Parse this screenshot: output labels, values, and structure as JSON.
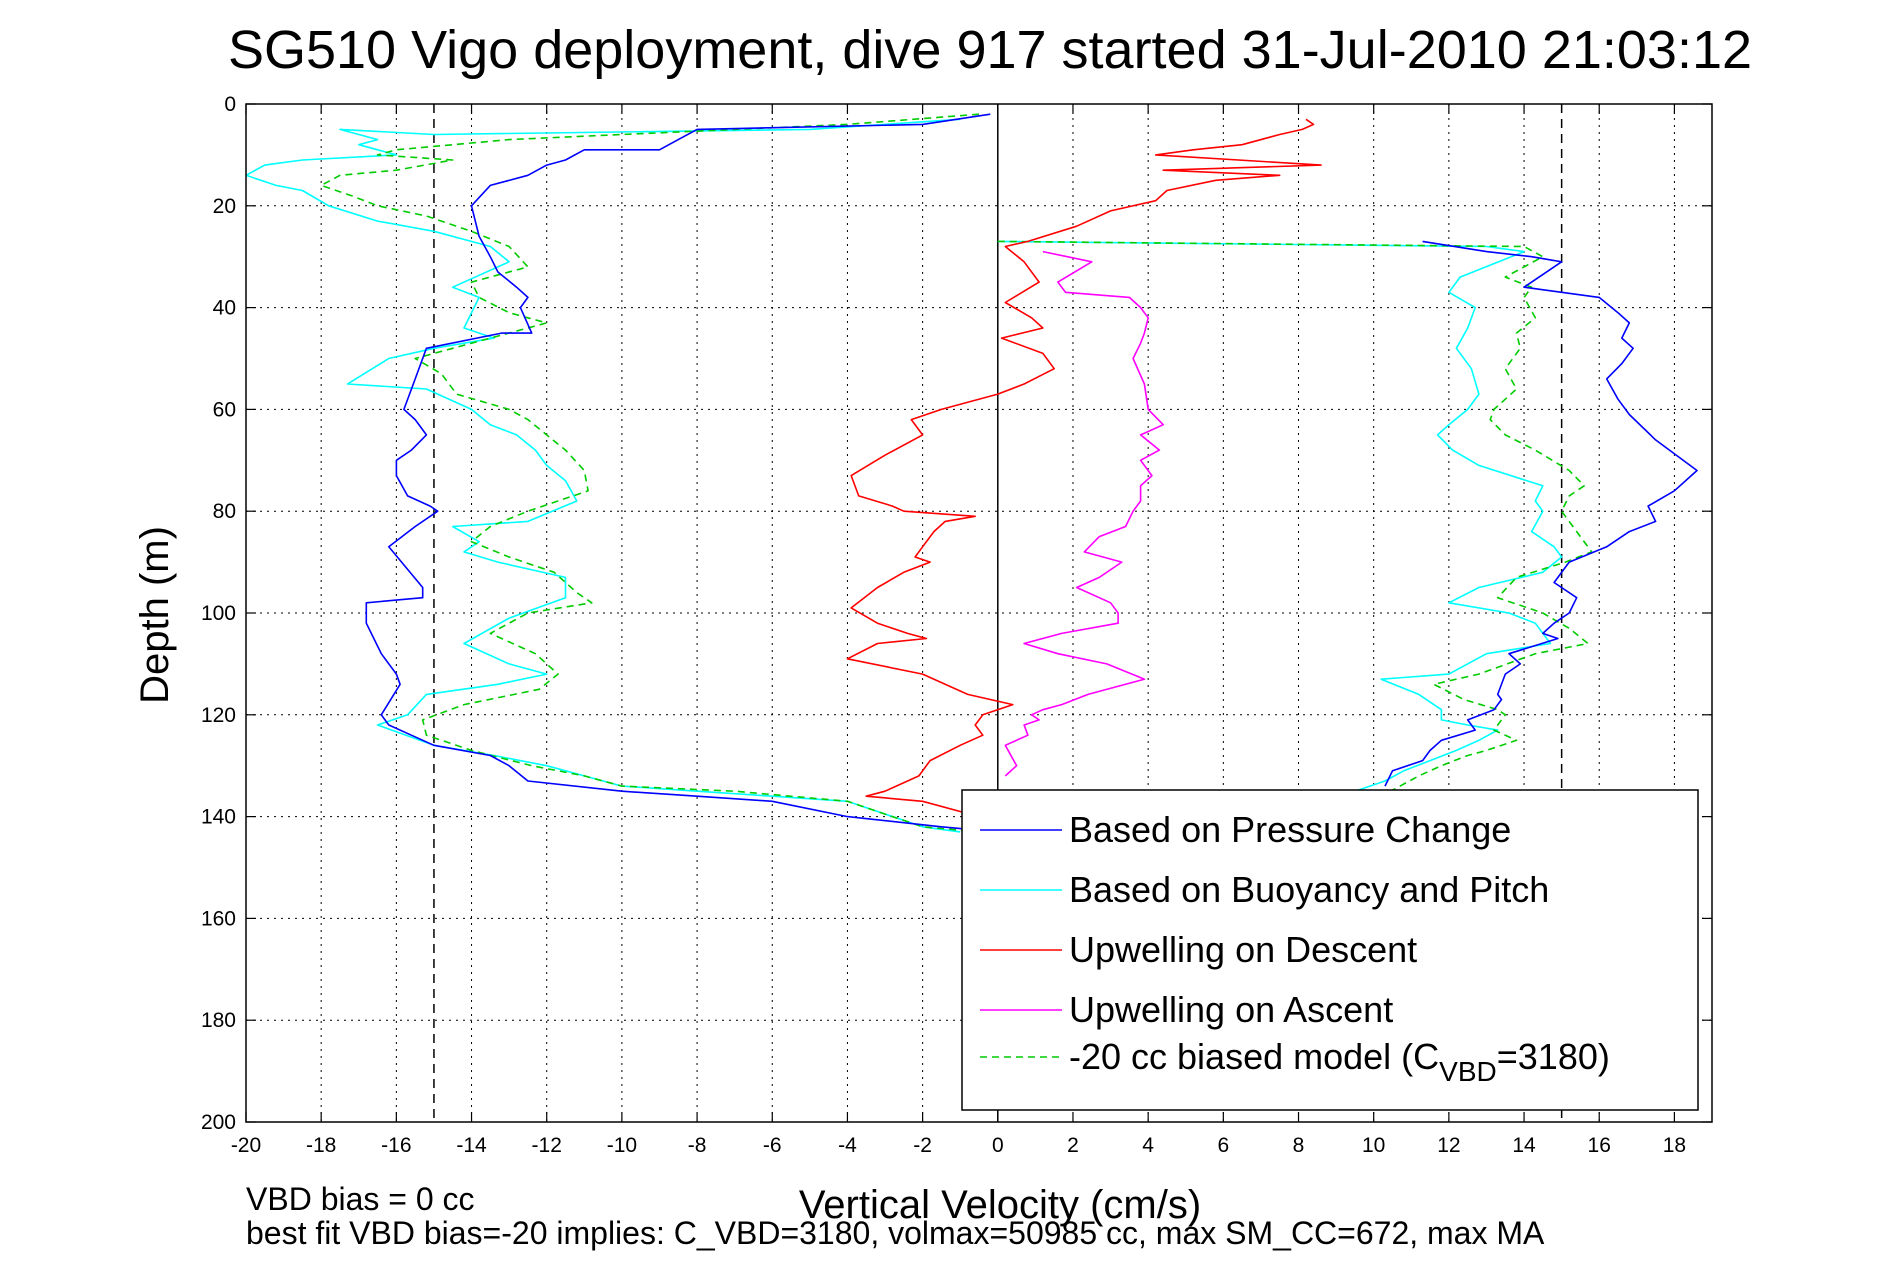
{
  "chart_data": {
    "type": "line",
    "title": "SG510 Vigo deployment, dive 917 started 31-Jul-2010 21:03:12",
    "xlabel": "Vertical Velocity (cm/s)",
    "ylabel": "Depth (m)",
    "xlim": [
      -20,
      19
    ],
    "ylim": [
      0,
      200
    ],
    "y_reversed": true,
    "grid": true,
    "x_ticks": [
      "-20",
      "-18",
      "-16",
      "-14",
      "-12",
      "-10",
      "-8",
      "-6",
      "-4",
      "-2",
      "0",
      "2",
      "4",
      "6",
      "8",
      "10",
      "12",
      "14",
      "16",
      "18"
    ],
    "y_ticks": [
      "0",
      "20",
      "40",
      "60",
      "80",
      "100",
      "120",
      "140",
      "160",
      "180",
      "200"
    ],
    "reference_lines": [
      {
        "type": "vertical",
        "x": 0,
        "style": "solid",
        "color": "#000000"
      },
      {
        "type": "vertical",
        "x": -15,
        "style": "dashed",
        "color": "#000000"
      },
      {
        "type": "vertical",
        "x": 15,
        "style": "dashed",
        "color": "#000000"
      }
    ],
    "legend_position": "bottom-right",
    "legend": [
      {
        "label": "Based on Pressure Change",
        "color": "#0000ff",
        "dash": false
      },
      {
        "label": "Based on Buoyancy and Pitch",
        "color": "#00ffff",
        "dash": false
      },
      {
        "label": "Upwelling on Descent",
        "color": "#ff0000",
        "dash": false
      },
      {
        "label": "Upwelling on Ascent",
        "color": "#ff00ff",
        "dash": false
      },
      {
        "label_pre": "-20 cc biased model (C",
        "label_sub": "VBD",
        "label_post": "=3180)",
        "color": "#00cc00",
        "dash": true
      }
    ],
    "series": [
      {
        "name": "Based on Pressure Change",
        "color": "#0000ff",
        "dash": false,
        "x": [
          -0.2,
          -2,
          -8,
          -8.5,
          -9,
          -11,
          -11.5,
          -12,
          -12.5,
          -13.5,
          -14,
          -13.8,
          -13.5,
          -13.3,
          -12.8,
          -12.5,
          -12.7,
          -12.4,
          -13.2,
          -15.2,
          -15.5,
          -15.8,
          -15.5,
          -15.2,
          -15.6,
          -16,
          -16,
          -15.7,
          -15.1,
          -14.9,
          -15.5,
          -16.2,
          -15.3,
          -15.3,
          -16.8,
          -16.8,
          -16.4,
          -16,
          -15.9,
          -16.4,
          -16.2,
          -15.6,
          -15,
          -13.5,
          -13,
          -12.5,
          -10,
          -8,
          -6,
          -4,
          -1.5,
          0
        ],
        "y": [
          2,
          4,
          5,
          7,
          9,
          9,
          11,
          12,
          14,
          16,
          20,
          26,
          30,
          33,
          36,
          38,
          40,
          45,
          45,
          48,
          54,
          60,
          62,
          65,
          68,
          70,
          73,
          77,
          79,
          80,
          83,
          87,
          95,
          97,
          98,
          102,
          108,
          112,
          114,
          120,
          122,
          124,
          126,
          128,
          130,
          133,
          135,
          136,
          137,
          140,
          142,
          143
        ]
      },
      {
        "name": "Upwelling on Descent",
        "color": "#ff0000",
        "dash": false,
        "x": [
          8.2,
          8.4,
          8.1,
          7.5,
          6.5,
          5.2,
          4.2,
          8.6,
          4.4,
          7.5,
          5.8,
          4.5,
          4.2,
          3,
          2.1,
          0.8,
          0.2,
          0.7,
          1.1,
          0.2,
          0.9,
          1.2,
          0.1,
          1.2,
          1.5,
          0.7,
          0,
          -1.5,
          -2.3,
          -2,
          -3,
          -3.9,
          -3.7,
          -2.8,
          -2.5,
          -0.6,
          -1.4,
          -1.7,
          -2,
          -2.2,
          -1.8,
          -2.5,
          -3.2,
          -3.9,
          -3.2,
          -2.4,
          -1.9,
          -3.2,
          -4,
          -2,
          -0.8,
          0.4,
          -0.4,
          -0.6,
          -0.4,
          -1,
          -1.8,
          -2.1,
          -3,
          -3.5,
          -2,
          -1,
          -0.5,
          -0.2
        ],
        "y": [
          3,
          4,
          5,
          6,
          8,
          9,
          10,
          12,
          13,
          14,
          15,
          17,
          19,
          21,
          24,
          27,
          28,
          31,
          35,
          39,
          42,
          44,
          46,
          49,
          52,
          55,
          57,
          60,
          62,
          65,
          69,
          73,
          77,
          79,
          80,
          81,
          82,
          84,
          87,
          89,
          90,
          92,
          95,
          99,
          102,
          104,
          105,
          106,
          109,
          112,
          116,
          118,
          120,
          122,
          124,
          126,
          129,
          132,
          135,
          136,
          137,
          139,
          140,
          141
        ]
      },
      {
        "name": "Upwelling on Ascent",
        "color": "#ff00ff",
        "dash": false,
        "x": [
          1.2,
          2.5,
          1.6,
          1.8,
          3.5,
          3.8,
          4.0,
          3.9,
          3.8,
          3.6,
          3.9,
          4.0,
          4.4,
          3.8,
          4.3,
          3.8,
          4.1,
          3.8,
          3.8,
          3.6,
          3.4,
          2.7,
          2.3,
          3.3,
          2.7,
          2.1,
          3.0,
          3.2,
          3.2,
          1.7,
          0.7,
          1.6,
          2.9,
          3.9,
          2.4,
          1.7,
          1.2,
          0.9,
          1.1,
          0.7,
          0.8,
          0.2,
          0.5,
          0.2
        ],
        "y": [
          29,
          31,
          35,
          37,
          38,
          40,
          42,
          45,
          47,
          50,
          55,
          60,
          63,
          65,
          68,
          70,
          73,
          75,
          78,
          80,
          83,
          85,
          88,
          90,
          93,
          95,
          98,
          100,
          102,
          104,
          106,
          108,
          110,
          113,
          116,
          118,
          119,
          120,
          121,
          122,
          124,
          126,
          130,
          132
        ]
      },
      {
        "name": "Based on Buoyancy and Pitch",
        "color": "#00ffff",
        "dash": false,
        "x": [
          -1,
          -5,
          -15,
          -17.5,
          -16.5,
          -17,
          -16,
          -18.5,
          -19.5,
          -20,
          -19.2,
          -18.5,
          -17.8,
          -16.5,
          -15,
          -13.5,
          -13,
          -14.5,
          -13.8,
          -14.2,
          -13.4,
          -15,
          -16.2,
          -17.3,
          -15.2,
          -14,
          -13.5,
          -12.8,
          -12.3,
          -12,
          -11.5,
          -11.2,
          -12.5,
          -14.5,
          -13.8,
          -14.2,
          -13.3,
          -11.5,
          -11.5,
          -13,
          -14.2,
          -13,
          -12,
          -13.3,
          -15.2,
          -15.7,
          -16.5,
          -15,
          -13.4,
          -12,
          -11,
          -10,
          -8,
          -6,
          -4,
          -2,
          -1
        ],
        "y": [
          3,
          5,
          6,
          5,
          7,
          8,
          10,
          11,
          12,
          14,
          16,
          17,
          20,
          23,
          25,
          28,
          31,
          36,
          38,
          44,
          46,
          48,
          50,
          55,
          56,
          60,
          63,
          65,
          68,
          71,
          74,
          78,
          82,
          83,
          86,
          88,
          90,
          93,
          97,
          101,
          106,
          110,
          112,
          114,
          116,
          120,
          122,
          126,
          128,
          130,
          132,
          134,
          135,
          136,
          137,
          142,
          143
        ]
      },
      {
        "name": "-20 cc biased model (CVBD=3180)",
        "color": "#00cc00",
        "dash": true,
        "x": [
          -0.5,
          -4,
          -10,
          -13,
          -14.5,
          -16,
          -16.5,
          -14.5,
          -16,
          -17.5,
          -18,
          -17.2,
          -16.5,
          -15.2,
          -14,
          -13,
          -12.5,
          -14,
          -13.8,
          -13,
          -12,
          -13.5,
          -14.5,
          -15.5,
          -14.8,
          -14.4,
          -13,
          -12.5,
          -12,
          -11.5,
          -11,
          -10.9,
          -12.5,
          -13.5,
          -14,
          -13,
          -11.8,
          -11.2,
          -10.8,
          -12.5,
          -13.5,
          -12.3,
          -11.7,
          -12.2,
          -14.2,
          -15.3,
          -15.2,
          -14,
          -12.4,
          -11,
          -10,
          -7,
          -4,
          -2,
          -0.5
        ],
        "y": [
          2,
          4,
          6,
          7,
          8,
          9,
          10,
          11,
          13,
          14,
          16,
          18,
          20,
          22,
          25,
          28,
          32,
          35,
          38,
          41,
          43,
          46,
          48,
          50,
          53,
          57,
          60,
          62,
          65,
          68,
          72,
          76,
          80,
          83,
          86,
          89,
          92,
          96,
          98,
          100,
          104,
          108,
          112,
          115,
          118,
          121,
          124,
          127,
          130,
          132,
          134,
          135,
          137,
          142,
          143
        ]
      },
      {
        "name": "Based on Pressure Change (ascent)",
        "color": "#0000ff",
        "dash": false,
        "x": [
          11.3,
          13,
          14.2,
          15,
          14,
          16,
          16.5,
          16.8,
          16.6,
          16.9,
          16.6,
          16.2,
          16.5,
          16.8,
          17.5,
          18.6,
          18,
          17.3,
          17.5,
          16.8,
          16.2,
          15.2,
          14.8,
          15.4,
          15.2,
          14.8,
          14.5,
          14.9,
          13.6,
          13.9,
          13.5,
          13.3,
          13.4,
          13.2,
          12.5,
          12.7,
          11.8,
          11.5,
          11.3,
          10.5,
          10.3
        ],
        "y": [
          27,
          29,
          30,
          31,
          36,
          38,
          41,
          43,
          46,
          48,
          51,
          54,
          58,
          61,
          66,
          72,
          76,
          79,
          82,
          84,
          87,
          90,
          94,
          97,
          100,
          102,
          104,
          105,
          108,
          110,
          112,
          116,
          117,
          119,
          121,
          123,
          125,
          127,
          129,
          131,
          134
        ]
      },
      {
        "name": "Based on Buoyancy and Pitch (ascent)",
        "color": "#00ffff",
        "dash": false,
        "x": [
          0,
          13,
          14,
          12.3,
          12,
          12.7,
          12.5,
          12.2,
          12.6,
          12.8,
          12.5,
          12,
          11.7,
          12.1,
          12.8,
          14.5,
          14.3,
          14.5,
          14.2,
          14.8,
          15,
          14.5,
          12.8,
          12,
          13.6,
          14.3,
          14.7,
          13,
          12,
          10.2,
          11.2,
          11.8,
          11.8,
          12.5,
          13.3,
          12.8,
          12.2,
          11.5,
          10.8,
          10.3,
          9.5
        ],
        "y": [
          27,
          28,
          29,
          34,
          37,
          40,
          44,
          48,
          52,
          57,
          60,
          63,
          65,
          68,
          71,
          75,
          78,
          80,
          84,
          87,
          89,
          92,
          95,
          98,
          100,
          102,
          106,
          108,
          112,
          113,
          116,
          119,
          121,
          122,
          123,
          125,
          127,
          129,
          131,
          133,
          135
        ]
      },
      {
        "name": "-20 cc biased model (ascent)",
        "color": "#00cc00",
        "dash": true,
        "x": [
          0,
          14,
          14.5,
          13.5,
          14.2,
          14,
          14.3,
          13.8,
          13.9,
          13.5,
          13.8,
          13.2,
          13.1,
          13.5,
          14.3,
          15.2,
          15.6,
          15.2,
          15,
          15.3,
          15.8,
          15.1,
          13.8,
          13.3,
          14.5,
          15.2,
          15.7,
          14.3,
          12.8,
          11.6,
          12.4,
          13.3,
          13.5,
          13.2,
          13.8,
          13,
          12.5,
          11.8,
          11.2,
          10.7,
          10.2
        ],
        "y": [
          27,
          28,
          30,
          34,
          36,
          38,
          42,
          45,
          48,
          52,
          56,
          60,
          62,
          65,
          68,
          72,
          75,
          77,
          80,
          83,
          88,
          90,
          93,
          97,
          100,
          103,
          106,
          108,
          112,
          114,
          117,
          119,
          120,
          123,
          125,
          127,
          128,
          130,
          132,
          134,
          136
        ]
      }
    ]
  },
  "footer": {
    "line1": "VBD bias = 0 cc",
    "line2": "best fit VBD bias=-20 implies: C_VBD=3180, volmax=50985 cc, max SM_CC=672, max MA"
  }
}
